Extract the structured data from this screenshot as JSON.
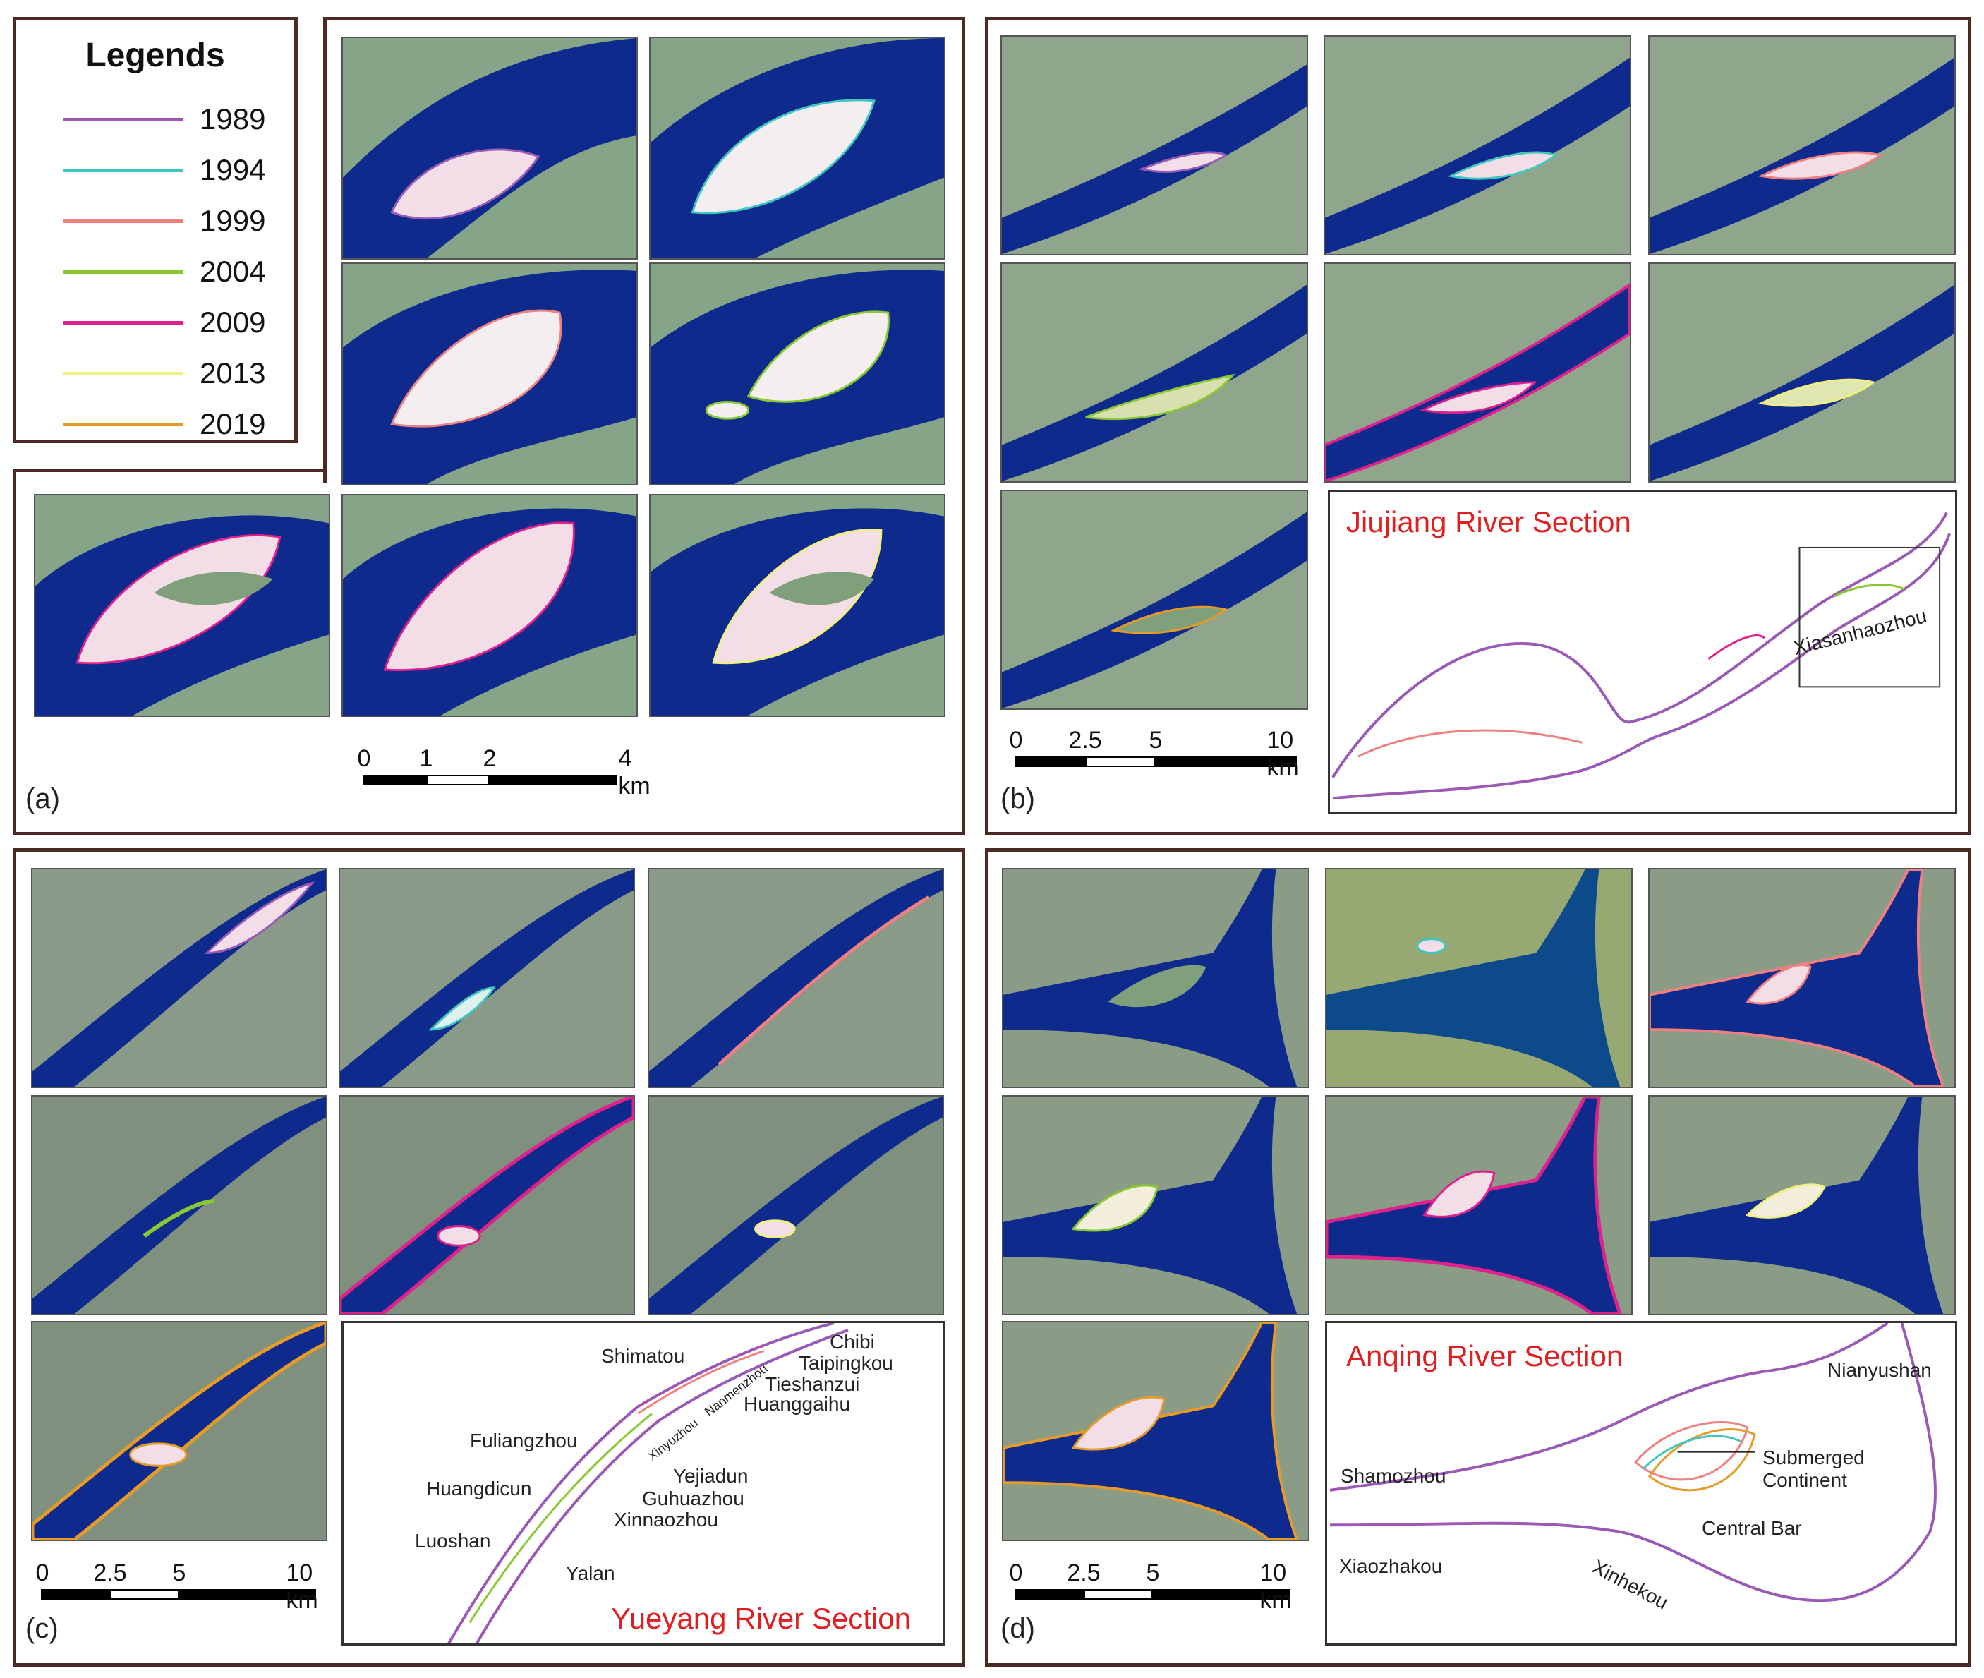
{
  "legend": {
    "title": "Legends",
    "items": [
      {
        "year": "1989",
        "color": "#9b59b6"
      },
      {
        "year": "1994",
        "color": "#40c8c0"
      },
      {
        "year": "1999",
        "color": "#f08080"
      },
      {
        "year": "2004",
        "color": "#8ac832"
      },
      {
        "year": "2009",
        "color": "#e0208c"
      },
      {
        "year": "2013",
        "color": "#f0f080"
      },
      {
        "year": "2019",
        "color": "#e69a28"
      }
    ]
  },
  "panels": {
    "a": {
      "label": "(a)",
      "scale_ticks": [
        "0",
        "1",
        "2",
        "4 km"
      ]
    },
    "b": {
      "label": "(b)",
      "scale_ticks": [
        "0",
        "2.5",
        "5",
        "10 km"
      ],
      "inset_title": "Jiujiang River Section",
      "places": [
        "Xiasanhaozhou"
      ]
    },
    "c": {
      "label": "(c)",
      "scale_ticks": [
        "0",
        "2.5",
        "5",
        "10 km"
      ],
      "inset_title": "Yueyang River Section",
      "places": [
        "Shimatou",
        "Chibi",
        "Taipingkou",
        "Tieshanzui",
        "Huanggaihu",
        "Xinyuzhou",
        "Nanmenzhou",
        "Fuliangzhou",
        "Huangdicun",
        "Yejiadun",
        "Guhuazhou",
        "Xinnaozhou",
        "Luoshan",
        "Yalan"
      ]
    },
    "d": {
      "label": "(d)",
      "scale_ticks": [
        "0",
        "2.5",
        "5",
        "10 km"
      ],
      "inset_title": "Anqing River Section",
      "places": [
        "Nianyushan",
        "Submerged",
        "Continent",
        "Shamozhou",
        "Central Bar",
        "Xiaozhakou",
        "Xinhekou"
      ]
    }
  },
  "colors": {
    "frame": "#4a2a22",
    "water": "#0d2a8c",
    "bar": "#f3dde6",
    "land": "#7fa07a",
    "inset_title": "#e02020"
  }
}
